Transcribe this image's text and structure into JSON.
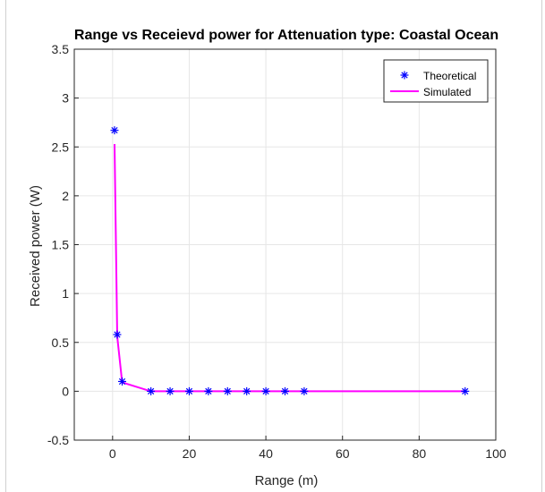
{
  "figure": {
    "background": "#ffffff",
    "plot_area_color": "#ffffff",
    "grid_color": "#e6e6e6",
    "axis_color": "#262626"
  },
  "chart_data": {
    "type": "line",
    "title": "Range vs Receievd power for Attenuation type: Coastal Ocean",
    "xlabel": "Range (m)",
    "ylabel": "Received power (W)",
    "xlim": [
      -10,
      100
    ],
    "ylim": [
      -0.5,
      3.5
    ],
    "x_ticks": [
      0,
      20,
      40,
      60,
      80,
      100
    ],
    "x_tick_labels": [
      "0",
      "20",
      "40",
      "60",
      "80",
      "100"
    ],
    "y_ticks": [
      -0.5,
      0,
      0.5,
      1,
      1.5,
      2,
      2.5,
      3,
      3.5
    ],
    "y_tick_labels": [
      "-0.5",
      "0",
      "0.5",
      "1",
      "1.5",
      "2",
      "2.5",
      "3",
      "3.5"
    ],
    "grid": true,
    "legend_position": "top-right",
    "series": [
      {
        "name": "Theoretical",
        "style": "markers",
        "marker": "asterisk",
        "color": "#0000ff",
        "x": [
          0.5,
          1.2,
          2.5,
          10,
          15,
          20,
          25,
          30,
          35,
          40,
          45,
          50,
          92
        ],
        "y": [
          2.67,
          0.58,
          0.1,
          0.0,
          0.0,
          0.0,
          0.0,
          0.0,
          0.0,
          0.0,
          0.0,
          0.0,
          0.0
        ]
      },
      {
        "name": "Simulated",
        "style": "line",
        "color": "#ff00ff",
        "x": [
          0.5,
          1.2,
          2.5,
          10,
          15,
          20,
          25,
          30,
          35,
          40,
          45,
          50,
          92
        ],
        "y": [
          2.53,
          0.56,
          0.09,
          0.0,
          0.0,
          0.0,
          0.0,
          0.0,
          0.0,
          0.0,
          0.0,
          0.0,
          0.0
        ]
      }
    ]
  }
}
